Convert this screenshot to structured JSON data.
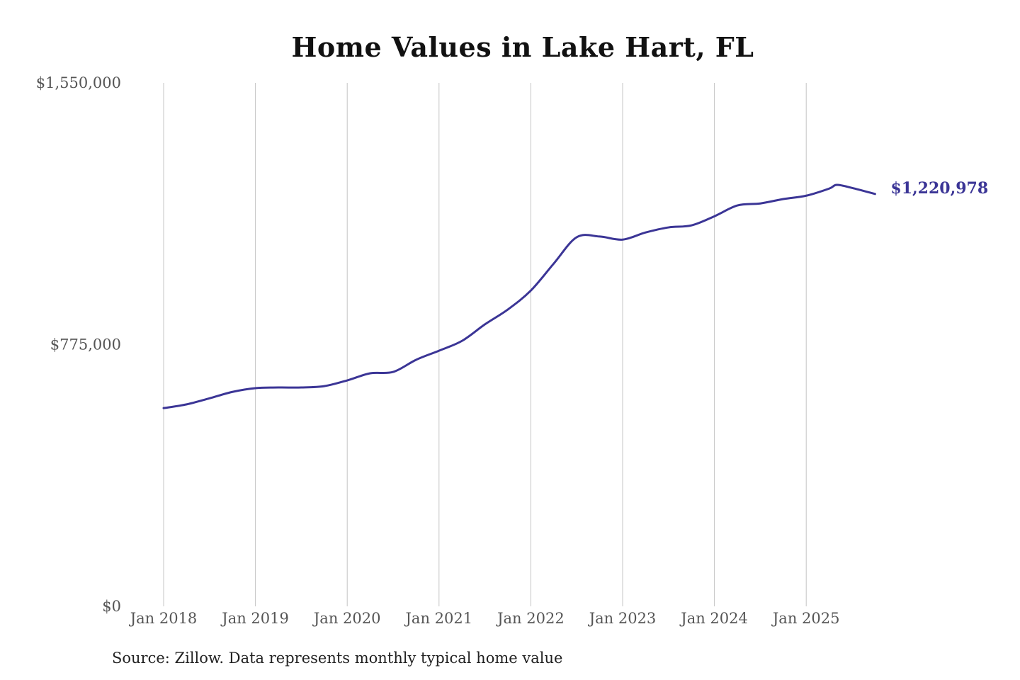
{
  "chart_data": {
    "type": "line",
    "title": "Home Values in Lake Hart, FL",
    "source": "Source: Zillow. Data represents monthly typical home value",
    "xlabel": "",
    "ylabel": "",
    "ylim": [
      0,
      1550000
    ],
    "y_ticks": [
      0,
      775000,
      1550000
    ],
    "y_tick_labels": [
      "$0",
      "$775,000",
      "$1,550,000"
    ],
    "x_tick_labels": [
      "Jan 2018",
      "Jan 2019",
      "Jan 2020",
      "Jan 2021",
      "Jan 2022",
      "Jan 2023",
      "Jan 2024",
      "Jan 2025"
    ],
    "grid": "vertical",
    "line_color": "#3b3596",
    "end_label": "$1,220,978",
    "x": [
      "2018-01",
      "2018-04",
      "2018-07",
      "2018-10",
      "2019-01",
      "2019-04",
      "2019-07",
      "2019-10",
      "2020-01",
      "2020-04",
      "2020-07",
      "2020-10",
      "2021-01",
      "2021-04",
      "2021-07",
      "2021-10",
      "2022-01",
      "2022-04",
      "2022-07",
      "2022-10",
      "2023-01",
      "2023-04",
      "2023-07",
      "2023-10",
      "2024-01",
      "2024-04",
      "2024-07",
      "2024-10",
      "2025-01",
      "2025-04",
      "2025-05",
      "2025-07",
      "2025-10"
    ],
    "values": [
      587000,
      598000,
      616000,
      635000,
      646000,
      648000,
      648000,
      652000,
      669000,
      690000,
      694000,
      730000,
      757000,
      786000,
      835000,
      879000,
      935000,
      1015000,
      1093000,
      1095000,
      1086000,
      1107000,
      1122000,
      1128000,
      1155000,
      1187000,
      1193000,
      1206000,
      1216000,
      1237000,
      1248000,
      1239000,
      1220978
    ]
  }
}
